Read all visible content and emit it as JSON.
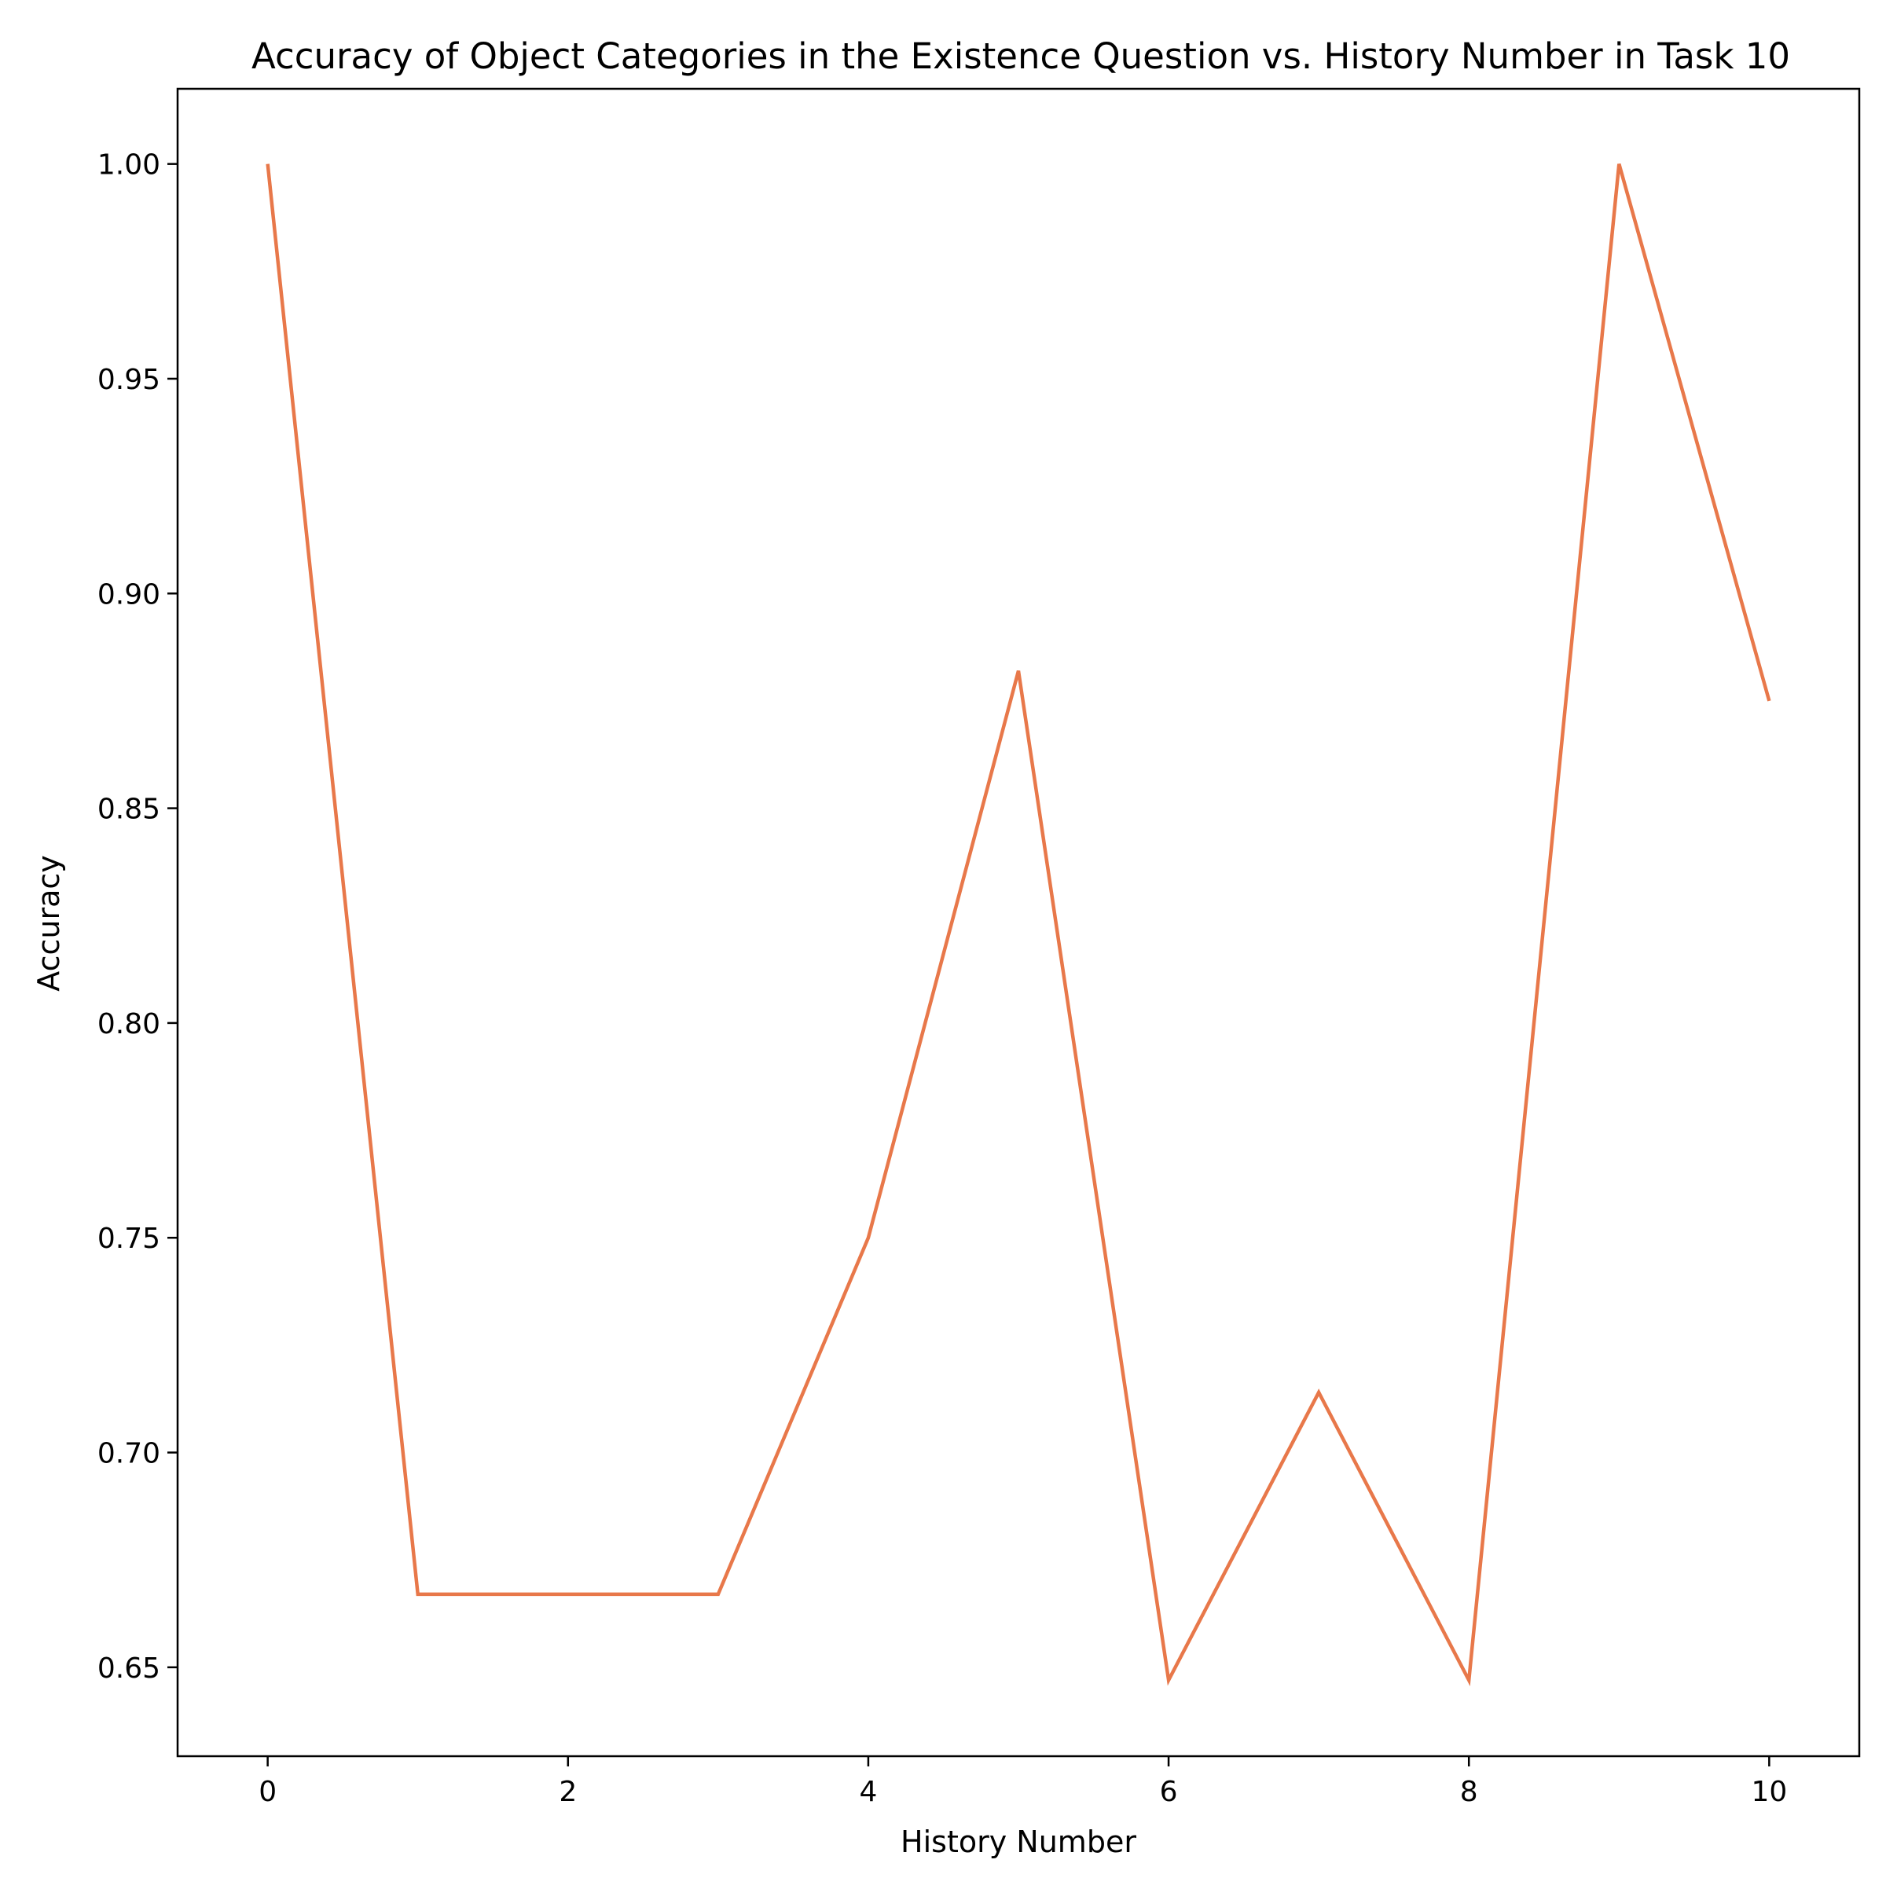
{
  "chart_data": {
    "type": "line",
    "title": "Accuracy of Object Categories in the Existence Question vs. History Number in Task 10",
    "xlabel": "History Number",
    "ylabel": "Accuracy",
    "xlim": [
      -0.6,
      10.6
    ],
    "ylim": [
      0.6293,
      1.0175
    ],
    "xticks": [
      0,
      2,
      4,
      6,
      8,
      10
    ],
    "xtick_labels": [
      "0",
      "2",
      "4",
      "6",
      "8",
      "10"
    ],
    "yticks": [
      0.65,
      0.7,
      0.75,
      0.8,
      0.85,
      0.9,
      0.95,
      1.0
    ],
    "ytick_labels": [
      "0.65",
      "0.70",
      "0.75",
      "0.80",
      "0.85",
      "0.90",
      "0.95",
      "1.00"
    ],
    "grid": false,
    "series": [
      {
        "color": "#e8784a",
        "x": [
          0,
          1,
          2,
          3,
          4,
          5,
          6,
          7,
          8,
          9,
          10
        ],
        "y": [
          1.0,
          0.667,
          0.667,
          0.667,
          0.75,
          0.882,
          0.647,
          0.714,
          0.647,
          1.0,
          0.875
        ]
      }
    ]
  }
}
